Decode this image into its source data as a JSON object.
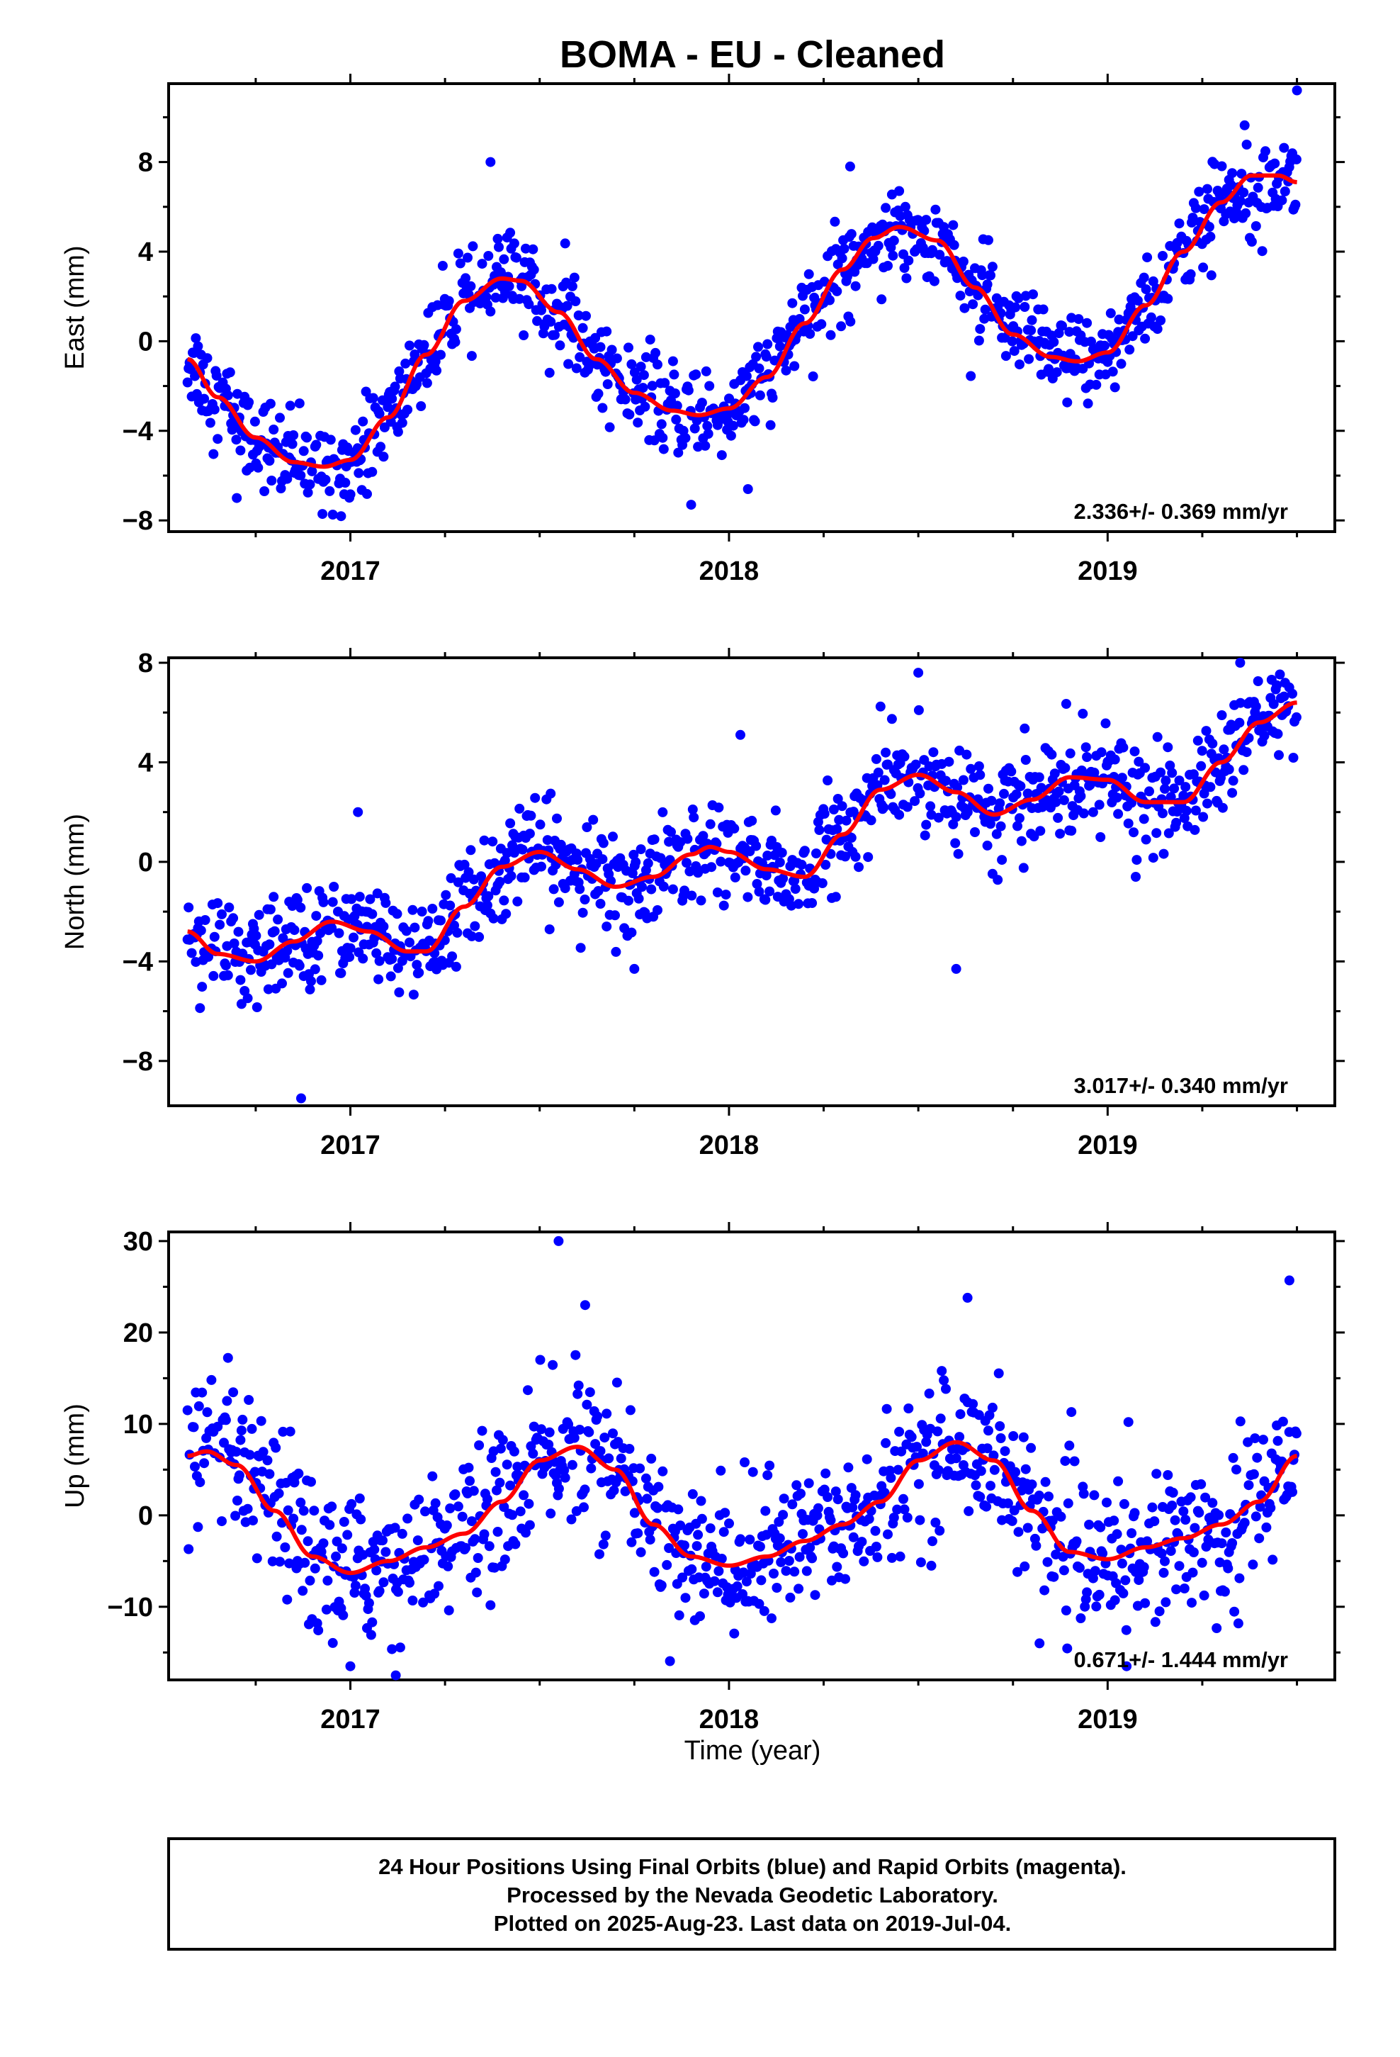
{
  "title": "BOMA  - EU - Cleaned",
  "xlabel": "Time (year)",
  "footer": {
    "line1": "24 Hour Positions Using Final Orbits (blue) and Rapid Orbits (magenta).",
    "line2": "Processed by the Nevada Geodetic Laboratory.",
    "line3": "Plotted on 2025-Aug-23. Last data on 2019-Jul-04."
  },
  "colors": {
    "final_orbit_points": "#0000ff",
    "fit_curve": "#ff0000",
    "frame": "#000000"
  },
  "chart_data": [
    {
      "type": "scatter",
      "panel": "east",
      "ylabel": "East (mm)",
      "xlim": [
        2016.52,
        2019.6
      ],
      "ylim": [
        -8.5,
        11.5
      ],
      "xticks": [
        2017,
        2018,
        2019
      ],
      "xtick_labels": [
        "2017",
        "2018",
        "2019"
      ],
      "yticks": [
        -8,
        -4,
        0,
        4,
        8
      ],
      "ytick_labels": [
        "−8",
        "−4",
        "0",
        "4",
        "8"
      ],
      "rate_label": "2.336+/- 0.369 mm/yr",
      "rate_mm_per_yr": 2.336,
      "rate_sigma": 0.369,
      "series": [
        {
          "style": "fit_curve",
          "x": [
            2016.57,
            2016.65,
            2016.75,
            2016.85,
            2016.93,
            2017.0,
            2017.1,
            2017.2,
            2017.3,
            2017.4,
            2017.45,
            2017.55,
            2017.65,
            2017.75,
            2017.85,
            2017.92,
            2018.0,
            2018.1,
            2018.2,
            2018.3,
            2018.38,
            2018.45,
            2018.55,
            2018.65,
            2018.75,
            2018.85,
            2018.92,
            2019.0,
            2019.1,
            2019.2,
            2019.3,
            2019.38,
            2019.45,
            2019.5
          ],
          "y": [
            -0.8,
            -2.5,
            -4.3,
            -5.4,
            -5.6,
            -5.3,
            -3.4,
            -0.6,
            1.8,
            2.8,
            2.7,
            1.3,
            -0.8,
            -2.3,
            -3.1,
            -3.3,
            -3.0,
            -1.6,
            0.8,
            3.2,
            4.6,
            5.1,
            4.5,
            2.4,
            0.3,
            -0.7,
            -0.9,
            -0.5,
            1.6,
            4.0,
            6.2,
            7.4,
            7.4,
            7.1
          ]
        },
        {
          "style": "points",
          "description_model": "daily positions scattered around fit",
          "sigma_mm": 1.0,
          "outliers": [
            [
              2017.37,
              8.0
            ],
            [
              2018.32,
              7.8
            ],
            [
              2019.5,
              11.2
            ],
            [
              2017.9,
              -7.3
            ],
            [
              2018.05,
              -6.6
            ],
            [
              2016.7,
              -7.0
            ]
          ]
        }
      ]
    },
    {
      "type": "scatter",
      "panel": "north",
      "ylabel": "North (mm)",
      "xlim": [
        2016.52,
        2019.6
      ],
      "ylim": [
        -9.8,
        8.2
      ],
      "xticks": [
        2017,
        2018,
        2019
      ],
      "xtick_labels": [
        "2017",
        "2018",
        "2019"
      ],
      "yticks": [
        -8,
        -4,
        0,
        4,
        8
      ],
      "ytick_labels": [
        "−8",
        "−4",
        "0",
        "4",
        "8"
      ],
      "rate_label": "3.017+/- 0.340 mm/yr",
      "rate_mm_per_yr": 3.017,
      "rate_sigma": 0.34,
      "series": [
        {
          "style": "fit_curve",
          "x": [
            2016.57,
            2016.65,
            2016.75,
            2016.85,
            2016.95,
            2017.05,
            2017.15,
            2017.2,
            2017.3,
            2017.4,
            2017.5,
            2017.6,
            2017.7,
            2017.8,
            2017.9,
            2017.95,
            2018.0,
            2018.1,
            2018.2,
            2018.3,
            2018.4,
            2018.5,
            2018.6,
            2018.7,
            2018.8,
            2018.9,
            2019.0,
            2019.1,
            2019.2,
            2019.3,
            2019.4,
            2019.5
          ],
          "y": [
            -2.8,
            -3.7,
            -4.0,
            -3.2,
            -2.4,
            -2.8,
            -3.6,
            -3.6,
            -1.8,
            -0.2,
            0.4,
            -0.3,
            -1.0,
            -0.6,
            0.3,
            0.6,
            0.4,
            -0.3,
            -0.6,
            1.1,
            2.9,
            3.5,
            2.8,
            1.9,
            2.5,
            3.4,
            3.3,
            2.4,
            2.4,
            4.0,
            5.6,
            6.4
          ]
        },
        {
          "style": "points",
          "description_model": "daily positions scattered around fit",
          "sigma_mm": 1.0,
          "outliers": [
            [
              2016.87,
              -9.5
            ],
            [
              2017.02,
              2.0
            ],
            [
              2018.03,
              5.1
            ],
            [
              2018.5,
              7.6
            ],
            [
              2018.6,
              -4.3
            ],
            [
              2017.75,
              -4.3
            ],
            [
              2019.35,
              8.0
            ]
          ]
        }
      ]
    },
    {
      "type": "scatter",
      "panel": "up",
      "ylabel": "Up (mm)",
      "xlim": [
        2016.52,
        2019.6
      ],
      "ylim": [
        -18,
        31
      ],
      "xticks": [
        2017,
        2018,
        2019
      ],
      "xtick_labels": [
        "2017",
        "2018",
        "2019"
      ],
      "yticks": [
        -10,
        0,
        10,
        20,
        30
      ],
      "ytick_labels": [
        "−10",
        "0",
        "10",
        "20",
        "30"
      ],
      "rate_label": "0.671+/- 1.444 mm/yr",
      "rate_mm_per_yr": 0.671,
      "rate_sigma": 1.444,
      "series": [
        {
          "style": "fit_curve",
          "x": [
            2016.57,
            2016.62,
            2016.7,
            2016.8,
            2016.9,
            2017.0,
            2017.1,
            2017.2,
            2017.3,
            2017.4,
            2017.5,
            2017.6,
            2017.7,
            2017.8,
            2017.9,
            2018.0,
            2018.1,
            2018.2,
            2018.3,
            2018.4,
            2018.5,
            2018.6,
            2018.7,
            2018.8,
            2018.9,
            2019.0,
            2019.1,
            2019.2,
            2019.3,
            2019.4,
            2019.5
          ],
          "y": [
            6.5,
            7.0,
            5.5,
            0.5,
            -4.5,
            -6.3,
            -5.0,
            -3.5,
            -2.0,
            1.5,
            6.0,
            7.5,
            5.0,
            -1.0,
            -4.5,
            -5.5,
            -4.5,
            -2.8,
            -1.0,
            1.5,
            6.0,
            8.0,
            6.0,
            0.5,
            -4.0,
            -4.8,
            -3.5,
            -2.5,
            -1.0,
            1.5,
            6.5
          ]
        },
        {
          "style": "points",
          "description_model": "daily positions scattered around fit",
          "sigma_mm": 4.0,
          "outliers": [
            [
              2017.55,
              30.0
            ],
            [
              2017.62,
              23.0
            ],
            [
              2018.63,
              23.8
            ],
            [
              2019.48,
              25.7
            ],
            [
              2017.0,
              -16.5
            ],
            [
              2017.12,
              -17.5
            ],
            [
              2018.82,
              -14.0
            ],
            [
              2019.05,
              -16.5
            ]
          ]
        }
      ]
    }
  ]
}
